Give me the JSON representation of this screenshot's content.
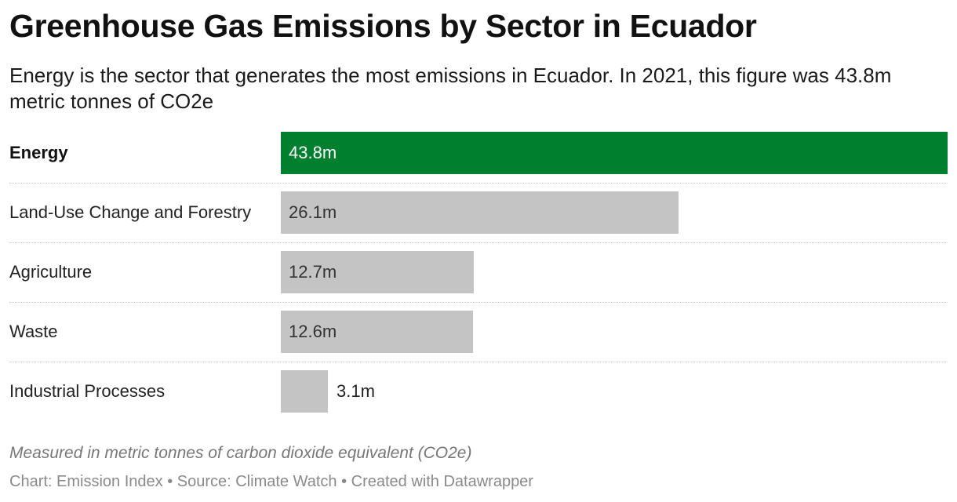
{
  "title": "Greenhouse Gas Emissions by Sector in Ecuador",
  "subtitle": "Energy is the sector that generates the most emissions in Ecuador. In 2021, this figure was 43.8m metric tonnes of CO2e",
  "notes": "Measured in metric tonnes of carbon dioxide equivalent (CO2e)",
  "footer": "Chart: Emission Index • Source: Climate Watch • Created with Datawrapper",
  "colors": {
    "highlight": "#00802f",
    "default_bar": "#c4c4c4",
    "highlight_text": "#ffffff",
    "default_text": "#333333"
  },
  "chart_data": {
    "type": "bar",
    "orientation": "horizontal",
    "categories": [
      "Energy",
      "Land-Use Change and Forestry",
      "Agriculture",
      "Waste",
      "Industrial Processes"
    ],
    "values": [
      43.8,
      26.1,
      12.7,
      12.6,
      3.1
    ],
    "value_labels": [
      "43.8m",
      "26.1m",
      "12.7m",
      "12.6m",
      "3.1m"
    ],
    "highlighted": [
      "Energy"
    ],
    "xlim": [
      0,
      43.8
    ],
    "unit": "m metric tonnes CO2e",
    "grid": false,
    "legend": "none"
  }
}
